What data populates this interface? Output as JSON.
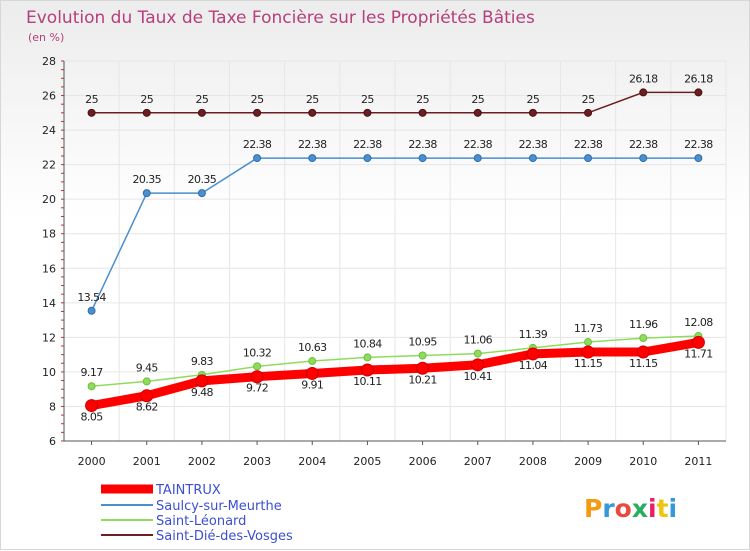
{
  "chart_data": {
    "type": "line",
    "title": "Evolution du Taux de Taxe Foncière sur les Propriétés Bâties",
    "subtitle": "(en %)",
    "xlabel": "",
    "ylabel": "",
    "ylim": [
      6,
      28
    ],
    "yticks": [
      "6",
      "8",
      "10",
      "12",
      "14",
      "16",
      "18",
      "20",
      "22",
      "24",
      "26",
      "28"
    ],
    "categories": [
      "2000",
      "2001",
      "2002",
      "2003",
      "2004",
      "2005",
      "2006",
      "2007",
      "2008",
      "2009",
      "2010",
      "2011"
    ],
    "legend_position": "bottom-left",
    "series": [
      {
        "name": "TAINTRUX",
        "color": "#ff0000",
        "values": [
          8.05,
          8.62,
          9.48,
          9.72,
          9.91,
          10.11,
          10.21,
          10.41,
          11.04,
          11.15,
          11.15,
          11.71
        ],
        "labels": [
          "8.05",
          "8.62",
          "9.48",
          "9.72",
          "9.91",
          "10.11",
          "10.21",
          "10.41",
          "11.04",
          "11.15",
          "11.15",
          "11.71"
        ]
      },
      {
        "name": "Saulcy-sur-Meurthe",
        "color": "#4a8fce",
        "values": [
          13.54,
          20.35,
          20.35,
          22.38,
          22.38,
          22.38,
          22.38,
          22.38,
          22.38,
          22.38,
          22.38,
          22.38
        ],
        "labels": [
          "13.54",
          "20.35",
          "20.35",
          "22.38",
          "22.38",
          "22.38",
          "22.38",
          "22.38",
          "22.38",
          "22.38",
          "22.38",
          "22.38"
        ]
      },
      {
        "name": "Saint-Léonard",
        "color": "#8fdc5c",
        "values": [
          9.17,
          9.45,
          9.83,
          10.32,
          10.63,
          10.84,
          10.95,
          11.06,
          11.39,
          11.73,
          11.96,
          12.08
        ],
        "labels": [
          "9.17",
          "9.45",
          "9.83",
          "10.32",
          "10.63",
          "10.84",
          "10.95",
          "11.06",
          "11.39",
          "11.73",
          "11.96",
          "12.08"
        ]
      },
      {
        "name": "Saint-Dié-des-Vosges",
        "color": "#6b1f22",
        "values": [
          25,
          25,
          25,
          25,
          25,
          25,
          25,
          25,
          25,
          25,
          26.18,
          26.18
        ],
        "labels": [
          "25",
          "25",
          "25",
          "25",
          "25",
          "25",
          "25",
          "25",
          "25",
          "25",
          "26.18",
          "26.18"
        ]
      }
    ]
  },
  "logo": {
    "text": "Proxiti",
    "letters": [
      "P",
      "r",
      "o",
      "x",
      "i",
      "t",
      "i"
    ],
    "colors": [
      "#f39c12",
      "#3498db",
      "#e74c3c",
      "#27ae60",
      "#e91e63",
      "#f1c40f",
      "#3498db"
    ]
  }
}
